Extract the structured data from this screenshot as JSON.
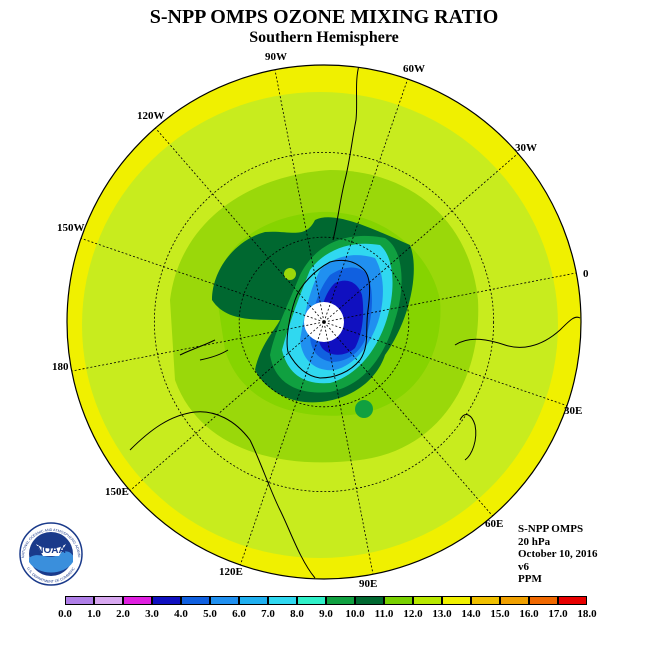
{
  "title": "S-NPP OMPS OZONE MIXING RATIO",
  "subtitle": "Southern Hemisphere",
  "longitude_labels": [
    "90W",
    "60W",
    "30W",
    "0",
    "30E",
    "60E",
    "90E",
    "120E",
    "150E",
    "180",
    "150W",
    "120W"
  ],
  "info": {
    "instrument": "S-NPP OMPS",
    "level": "20 hPa",
    "date": "October 10, 2016",
    "version": "v6",
    "units": "PPM"
  },
  "logo": {
    "text": "NOAA",
    "ring_text": "NATIONAL OCEANIC AND ATMOSPHERIC ADMINISTRATION",
    "ring_text_bottom": "U.S. DEPARTMENT OF COMMERCE"
  },
  "colorbar": {
    "labels": [
      "0.0",
      "1.0",
      "2.0",
      "3.0",
      "4.0",
      "5.0",
      "6.0",
      "7.0",
      "8.0",
      "9.0",
      "10.0",
      "11.0",
      "12.0",
      "13.0",
      "14.0",
      "15.0",
      "16.0",
      "17.0",
      "18.0"
    ],
    "colors": [
      "#b07fe8",
      "#d8a8f0",
      "#e020e0",
      "#1010c0",
      "#1060e0",
      "#2090f0",
      "#20b0f0",
      "#30d8f0",
      "#30f0c8",
      "#10a040",
      "#006830",
      "#78d000",
      "#b8e800",
      "#f0f000",
      "#f0c000",
      "#f0a000",
      "#f06800",
      "#e80000",
      "#906040"
    ]
  },
  "colors": {
    "outer": "#f0f000",
    "ring1": "#c8ec1e",
    "ring2": "#9ad80a",
    "ring3": "#78d000",
    "dark_green": "#006830",
    "green": "#10a040",
    "cyan": "#30d8f0",
    "blue_mid": "#2090f0",
    "blue": "#1060e0",
    "deep_blue": "#1010c0"
  }
}
